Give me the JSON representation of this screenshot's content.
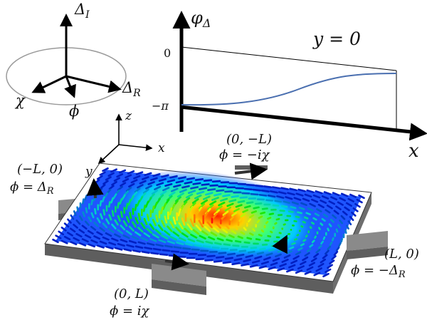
{
  "axes3d": {
    "delta_i": "Δ",
    "delta_i_sub": "I",
    "delta_r": "Δ",
    "delta_r_sub": "R",
    "chi": "χ",
    "phi": "ϕ"
  },
  "phase_plot": {
    "ylabel": "φ",
    "ylabel_sub": "Δ",
    "xlabel": "x",
    "annotation": "y = 0",
    "ytick_top": "0",
    "ytick_bottom": "−π"
  },
  "frame_axes": {
    "z": "z",
    "x": "x",
    "y": "y"
  },
  "contacts": {
    "top_coord": "(0, −L)",
    "top_phase": "ϕ = −iχ",
    "left_coord": "(−L, 0)",
    "left_phase_prefix": "ϕ = Δ",
    "left_phase_sub": "R",
    "right_coord": "(L, 0)",
    "right_phase_prefix": "ϕ = −Δ",
    "right_phase_sub": "R",
    "bottom_coord": "(0, L)",
    "bottom_phase": "ϕ = iχ"
  },
  "colors": {
    "arrow_dark": "#000000",
    "circle": "#9a9a9a",
    "phase_curve": "#4a6fb0",
    "lead_top": "#8a8a8a",
    "lead_side": "#5e5e5e",
    "field_low": "#1a3cff",
    "field_high": "#ff1500"
  }
}
